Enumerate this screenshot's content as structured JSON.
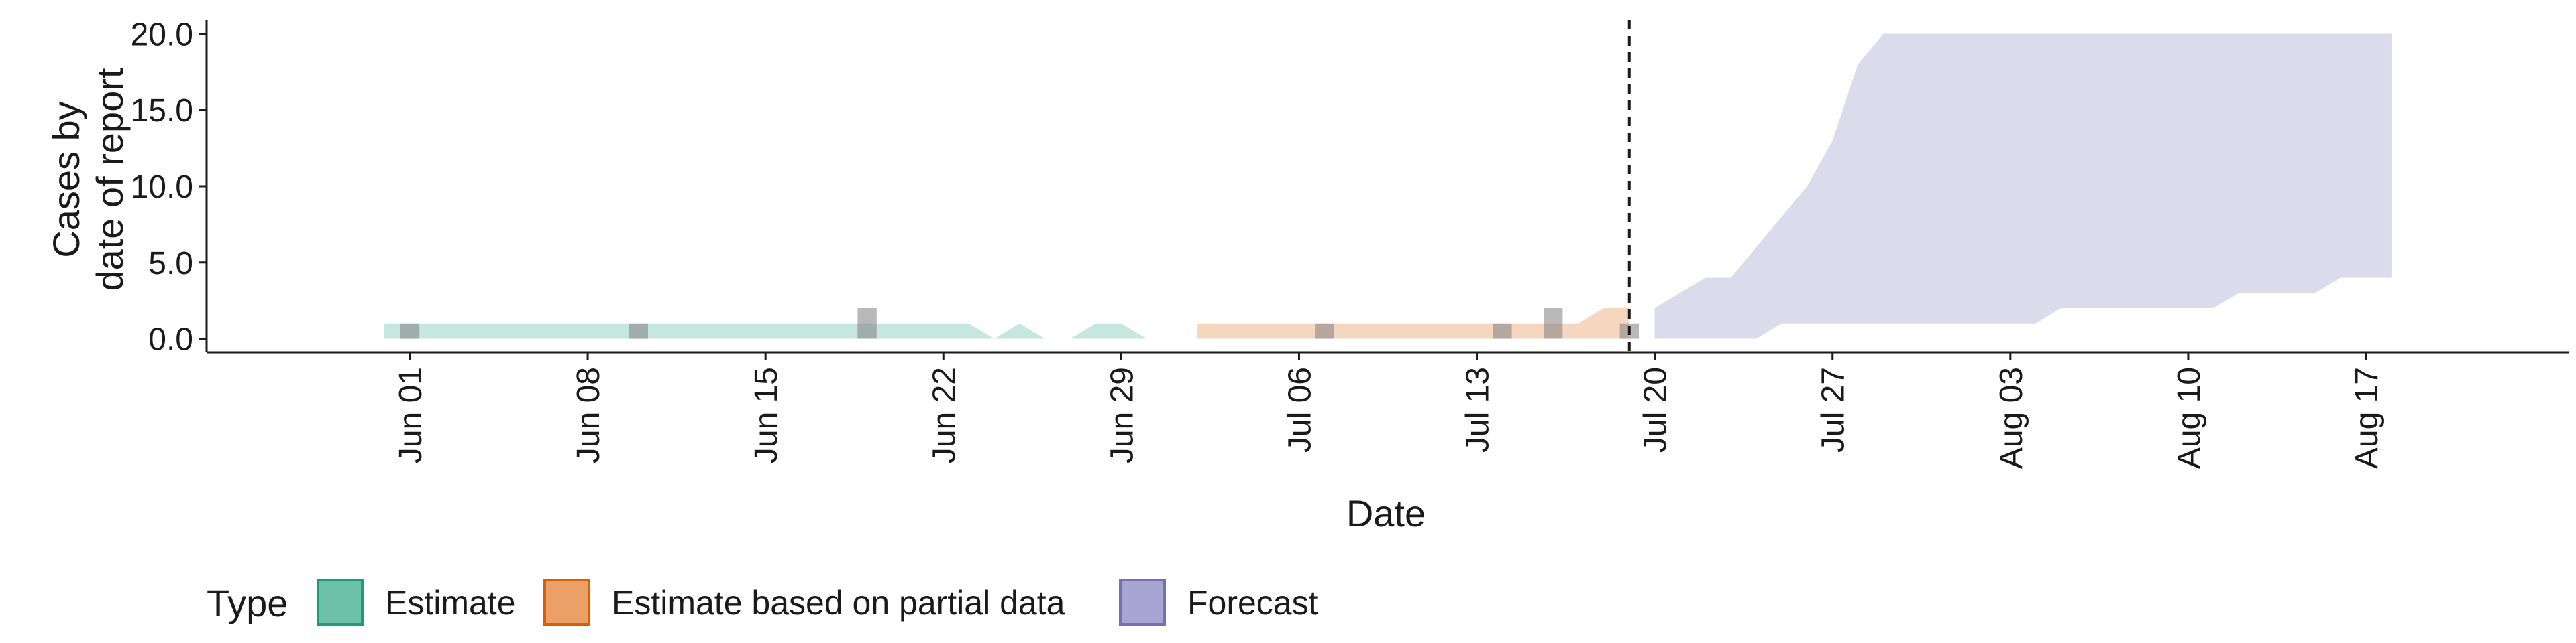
{
  "chart_data": {
    "type": "area",
    "title": "",
    "xlabel": "Date",
    "ylabel_lines": [
      "Cases by",
      "date of report"
    ],
    "ylim": [
      0,
      20
    ],
    "yticks": [
      0,
      5,
      10,
      15,
      20
    ],
    "ytick_labels": [
      "0.0",
      "5.0",
      "10.0",
      "15.0",
      "20.0"
    ],
    "xlim": [
      "2020-05-24",
      "2020-08-25"
    ],
    "xticks": [
      "2020-06-01",
      "2020-06-08",
      "2020-06-15",
      "2020-06-22",
      "2020-06-29",
      "2020-07-06",
      "2020-07-13",
      "2020-07-20",
      "2020-07-27",
      "2020-08-03",
      "2020-08-10",
      "2020-08-17"
    ],
    "xtick_labels": [
      "Jun 01",
      "Jun 08",
      "Jun 15",
      "Jun 22",
      "Jun 29",
      "Jul 06",
      "Jul 13",
      "Jul 20",
      "Jul 27",
      "Aug 03",
      "Aug 10",
      "Aug 17"
    ],
    "vline": "2020-07-19",
    "grid": false,
    "legend": {
      "title": "Type",
      "position": "bottom",
      "entries": [
        {
          "label": "Estimate",
          "fill": "#6cc1a6",
          "stroke": "#1b9e77"
        },
        {
          "label": "Estimate based on partial data",
          "fill": "#eba067",
          "stroke": "#d95f02"
        },
        {
          "label": "Forecast",
          "fill": "#a9a5d2",
          "stroke": "#7570b3"
        }
      ]
    },
    "series": [
      {
        "name": "Estimate",
        "color": "#1b9e77",
        "band_opacity": 0.25,
        "points": [
          {
            "date": "2020-05-31",
            "lower": 0,
            "upper": 1
          },
          {
            "date": "2020-06-23",
            "lower": 0,
            "upper": 1
          },
          {
            "date": "2020-06-24",
            "lower": 0,
            "upper": 0
          },
          {
            "date": "2020-06-25",
            "lower": 0,
            "upper": 1
          },
          {
            "date": "2020-06-26",
            "lower": 0,
            "upper": 0
          },
          {
            "date": "2020-06-27",
            "lower": 0,
            "upper": 0
          },
          {
            "date": "2020-06-28",
            "lower": 0,
            "upper": 1
          },
          {
            "date": "2020-06-29",
            "lower": 0,
            "upper": 1
          },
          {
            "date": "2020-06-30",
            "lower": 0,
            "upper": 0
          },
          {
            "date": "2020-07-01",
            "lower": 0,
            "upper": 0
          }
        ]
      },
      {
        "name": "Estimate based on partial data",
        "color": "#d95f02",
        "band_opacity": 0.25,
        "points": [
          {
            "date": "2020-07-02",
            "lower": 0,
            "upper": 1
          },
          {
            "date": "2020-07-16",
            "lower": 0,
            "upper": 1
          },
          {
            "date": "2020-07-17",
            "lower": 0,
            "upper": 1
          },
          {
            "date": "2020-07-18",
            "lower": 0,
            "upper": 2
          },
          {
            "date": "2020-07-19",
            "lower": 0,
            "upper": 2
          }
        ]
      },
      {
        "name": "Forecast",
        "color": "#7570b3",
        "band_opacity": 0.25,
        "points": [
          {
            "date": "2020-07-20",
            "lower": 0,
            "upper": 2
          },
          {
            "date": "2020-07-21",
            "lower": 0,
            "upper": 3
          },
          {
            "date": "2020-07-22",
            "lower": 0,
            "upper": 4
          },
          {
            "date": "2020-07-23",
            "lower": 0,
            "upper": 4
          },
          {
            "date": "2020-07-24",
            "lower": 0,
            "upper": 6
          },
          {
            "date": "2020-07-25",
            "lower": 1,
            "upper": 8
          },
          {
            "date": "2020-07-26",
            "lower": 1,
            "upper": 10
          },
          {
            "date": "2020-07-27",
            "lower": 1,
            "upper": 13
          },
          {
            "date": "2020-07-28",
            "lower": 1,
            "upper": 18
          },
          {
            "date": "2020-07-29",
            "lower": 1,
            "upper": 20
          },
          {
            "date": "2020-08-04",
            "lower": 1,
            "upper": 20
          },
          {
            "date": "2020-08-05",
            "lower": 2,
            "upper": 20
          },
          {
            "date": "2020-08-11",
            "lower": 2,
            "upper": 20
          },
          {
            "date": "2020-08-12",
            "lower": 3,
            "upper": 20
          },
          {
            "date": "2020-08-15",
            "lower": 3,
            "upper": 20
          },
          {
            "date": "2020-08-16",
            "lower": 4,
            "upper": 20
          },
          {
            "date": "2020-08-18",
            "lower": 4,
            "upper": 20
          }
        ]
      }
    ],
    "reported_cases": {
      "color": "#808080",
      "bars": [
        {
          "date": "2020-06-01",
          "value": 1
        },
        {
          "date": "2020-06-10",
          "value": 1
        },
        {
          "date": "2020-06-19",
          "value": 2
        },
        {
          "date": "2020-07-07",
          "value": 1
        },
        {
          "date": "2020-07-14",
          "value": 1
        },
        {
          "date": "2020-07-16",
          "value": 2
        },
        {
          "date": "2020-07-19",
          "value": 1
        }
      ]
    }
  }
}
